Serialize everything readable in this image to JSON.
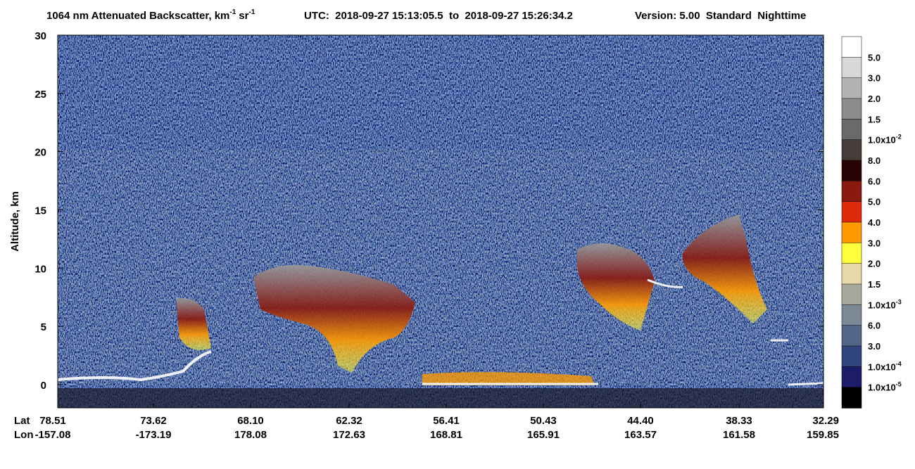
{
  "chart_data": {
    "type": "curtain",
    "title_parts": [
      "1064 nm Attenuated Backscatter, km",
      "-1",
      "sr",
      "-1"
    ],
    "utc": "UTC:  2018-09-27 15:13:05.5  to  2018-09-27 15:26:34.2",
    "version": "Version: 5.00  Standard  Nighttime",
    "ylabel": "Altitude, km",
    "ylim": [
      -2,
      30
    ],
    "yticks": [
      0,
      5,
      10,
      15,
      20,
      25,
      30
    ],
    "x_row_labels": [
      "Lat",
      "Lon"
    ],
    "lat": [
      "78.51",
      "73.62",
      "68.10",
      "62.32",
      "56.41",
      "50.43",
      "44.40",
      "38.33",
      "32.29"
    ],
    "lon": [
      "-157.08",
      "-173.19",
      "178.08",
      "172.63",
      "168.81",
      "165.91",
      "163.57",
      "161.58",
      "159.85"
    ],
    "colorbar_colors": [
      "#ffffff",
      "#d8d8d8",
      "#b2b2b2",
      "#8c8c8c",
      "#6a6a6a",
      "#463c3a",
      "#2a0404",
      "#8a1a10",
      "#e02a0c",
      "#ff9a00",
      "#ffff3c",
      "#e8d9ac",
      "#a7a79c",
      "#7c8a98",
      "#52668a",
      "#30457c",
      "#1c1c68",
      "#000000"
    ],
    "colorbar_labels": [
      {
        "mantissa": "5.0"
      },
      {
        "mantissa": "3.0"
      },
      {
        "mantissa": "2.0"
      },
      {
        "mantissa": "1.5"
      },
      {
        "mantissa": "1.0x10",
        "exponent": "-2"
      },
      {
        "mantissa": "8.0"
      },
      {
        "mantissa": "6.0"
      },
      {
        "mantissa": "5.0"
      },
      {
        "mantissa": "4.0"
      },
      {
        "mantissa": "3.0"
      },
      {
        "mantissa": "2.0"
      },
      {
        "mantissa": "1.5"
      },
      {
        "mantissa": "1.0x10",
        "exponent": "-3"
      },
      {
        "mantissa": "6.0"
      },
      {
        "mantissa": "3.0"
      },
      {
        "mantissa": "1.0x10",
        "exponent": "-4"
      },
      {
        "mantissa": "1.0x10",
        "exponent": "-5"
      }
    ]
  }
}
